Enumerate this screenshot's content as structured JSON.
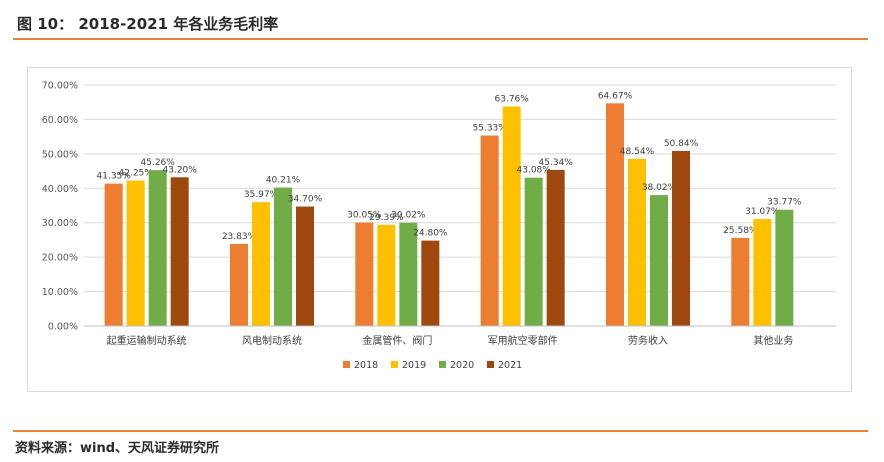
{
  "header": {
    "title": "图 10： 2018-2021 年各业务毛利率"
  },
  "footer": {
    "source": "资料来源：wind、天风证券研究所"
  },
  "colors": {
    "accent": "#e8833a"
  },
  "chart_data": {
    "type": "bar",
    "categories": [
      "起重运输制动系统",
      "风电制动系统",
      "金属管件、阀门",
      "军用航空零部件",
      "劳务收入",
      "其他业务"
    ],
    "yticks": [
      "0.00%",
      "10.00%",
      "20.00%",
      "30.00%",
      "40.00%",
      "50.00%",
      "60.00%",
      "70.00%"
    ],
    "ylim": [
      0,
      70
    ],
    "legend_position": "bottom",
    "grid": true,
    "series": [
      {
        "name": "2018",
        "color": "#ed7d31",
        "values": [
          41.35,
          23.83,
          30.05,
          55.33,
          64.67,
          25.58
        ],
        "labels": [
          "41.35%",
          "23.83%",
          "30.05%",
          "55.33%",
          "64.67%",
          "25.58%"
        ]
      },
      {
        "name": "2019",
        "color": "#ffc000",
        "values": [
          42.25,
          35.97,
          29.39,
          63.76,
          48.54,
          31.07
        ],
        "labels": [
          "42.25%",
          "35.97%",
          "29.39%",
          "63.76%",
          "48.54%",
          "31.07%"
        ]
      },
      {
        "name": "2020",
        "color": "#70ad47",
        "values": [
          45.26,
          40.21,
          30.02,
          43.08,
          38.02,
          33.77
        ],
        "labels": [
          "45.26%",
          "40.21%",
          "30.02%",
          "43.08%",
          "38.02%",
          "33.77%"
        ]
      },
      {
        "name": "2021",
        "color": "#9e480e",
        "values": [
          43.2,
          34.7,
          24.8,
          45.34,
          50.84,
          null
        ],
        "labels": [
          "43.20%",
          "34.70%",
          "24.80%",
          "45.34%",
          "50.84%",
          null
        ]
      }
    ]
  }
}
